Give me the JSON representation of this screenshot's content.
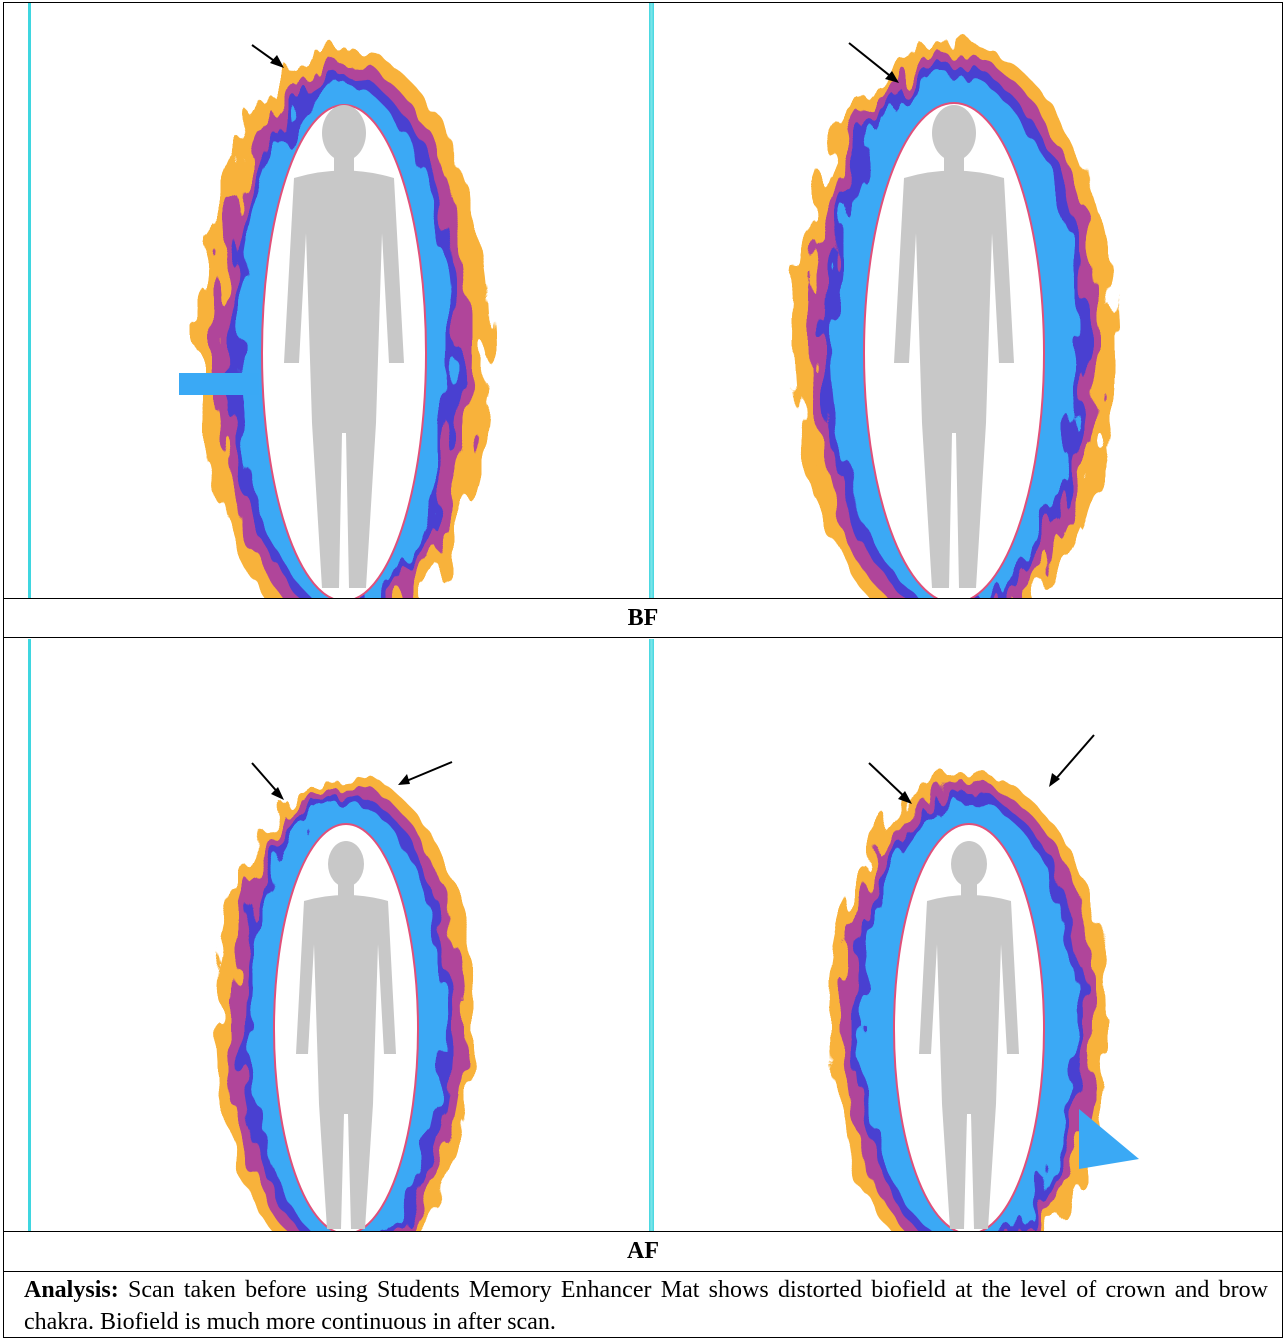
{
  "labels": {
    "before": "BF",
    "after": "AF"
  },
  "analysis": {
    "heading": "Analysis:",
    "text": "Scan taken before using Students Memory Enhancer Mat shows distorted biofield at the level of crown and brow chakra. Biofield is much more continuous in after scan."
  },
  "colors": {
    "outer_glow": "#f8b23a",
    "mid_glow": "#b0449a",
    "inner_band": "#3aa9f5",
    "deep_band": "#4a3fd1",
    "body_silhouette": "#c8c8c8",
    "ellipse_outline": "#e0507a",
    "divider": "#3fd6e0"
  },
  "images": [
    {
      "name": "bf-left-scan",
      "arrows": 1
    },
    {
      "name": "bf-right-scan",
      "arrows": 1
    },
    {
      "name": "af-left-scan",
      "arrows": 2
    },
    {
      "name": "af-right-scan",
      "arrows": 2
    }
  ]
}
